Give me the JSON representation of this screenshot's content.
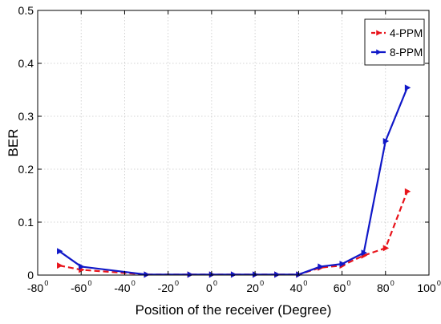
{
  "chart_data": {
    "type": "line",
    "title": "",
    "xlabel": "Position of the receiver (Degree)",
    "ylabel": "BER",
    "xlim": [
      -80,
      100
    ],
    "ylim": [
      0,
      0.5
    ],
    "x_ticks": [
      "-80",
      "-60",
      "-40",
      "-20",
      "0",
      "20",
      "40",
      "60",
      "80",
      "100"
    ],
    "x_tick_superscript": "0",
    "y_ticks": [
      "0",
      "0.1",
      "0.2",
      "0.3",
      "0.4",
      "0.5"
    ],
    "grid": true,
    "grid_style": "dotted",
    "legend_position": "top-right",
    "series": [
      {
        "name": "4-PPM",
        "color": "#e8141b",
        "line_style": "dashed",
        "marker": "right-triangle",
        "x": [
          -70,
          -60,
          -30,
          -10,
          0,
          10,
          20,
          30,
          40,
          50,
          60,
          70,
          80,
          90
        ],
        "y": [
          0.018,
          0.01,
          0.001,
          0.001,
          0.001,
          0.001,
          0.001,
          0.001,
          0.001,
          0.014,
          0.018,
          0.037,
          0.051,
          0.158
        ]
      },
      {
        "name": "8-PPM",
        "color": "#1018c8",
        "line_style": "solid",
        "marker": "right-triangle",
        "x": [
          -70,
          -60,
          -30,
          -10,
          0,
          10,
          20,
          30,
          40,
          50,
          60,
          70,
          80,
          90
        ],
        "y": [
          0.045,
          0.016,
          0.001,
          0.001,
          0.001,
          0.001,
          0.001,
          0.001,
          0.001,
          0.016,
          0.021,
          0.042,
          0.253,
          0.354
        ]
      }
    ]
  }
}
